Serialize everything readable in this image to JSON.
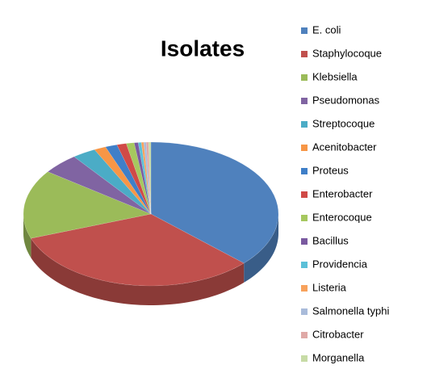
{
  "chart_data": {
    "type": "pie",
    "title": "Isolates",
    "categories": [
      "E. coli",
      "Staphylocoque",
      "Klebsiella",
      "Pseudomonas",
      "Streptocoque",
      "Acenitobacter",
      "Proteus",
      "Enterobacter",
      "Enterocoque",
      "Bacillus",
      "Providencia",
      "Listeria",
      "Salmonella typhi",
      "Citrobacter",
      "Morganella"
    ],
    "values": [
      37,
      32.5,
      15.5,
      4.7,
      3,
      1.5,
      1.5,
      1.2,
      1,
      0.5,
      0.4,
      0.3,
      0.3,
      0.3,
      0.3
    ],
    "colors": [
      "#4f81bd",
      "#c0504d",
      "#9bbb59",
      "#8064a2",
      "#4bacc6",
      "#f79646",
      "#3f7fc8",
      "#d04a47",
      "#a6c85f",
      "#7a5aa0",
      "#5cc0d8",
      "#f8a25c",
      "#a9bbda",
      "#dfa9a7",
      "#c7dba6"
    ],
    "legend": "right",
    "three_d": true
  }
}
